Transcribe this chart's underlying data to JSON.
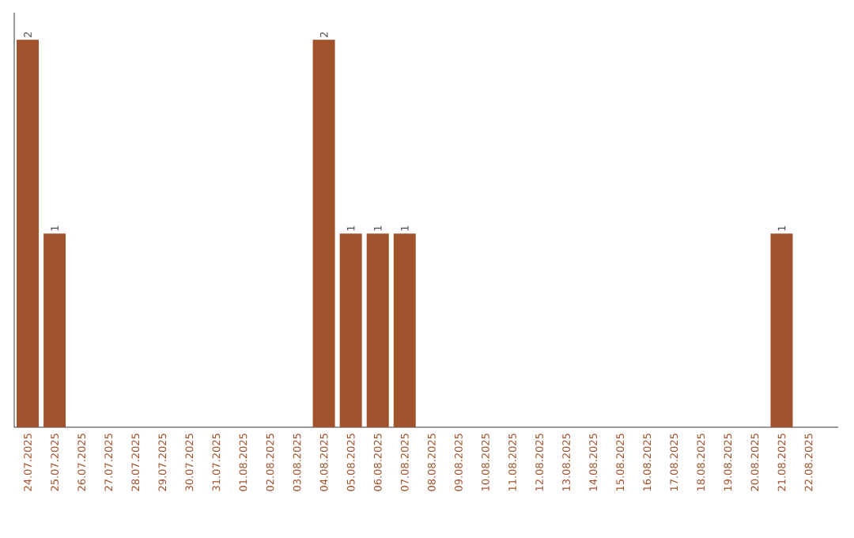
{
  "chart_data": {
    "type": "bar",
    "categories": [
      "24.07.2025",
      "25.07.2025",
      "26.07.2025",
      "27.07.2025",
      "28.07.2025",
      "29.07.2025",
      "30.07.2025",
      "31.07.2025",
      "01.08.2025",
      "02.08.2025",
      "03.08.2025",
      "04.08.2025",
      "05.08.2025",
      "06.08.2025",
      "07.08.2025",
      "08.08.2025",
      "09.08.2025",
      "10.08.2025",
      "11.08.2025",
      "12.08.2025",
      "13.08.2025",
      "14.08.2025",
      "15.08.2025",
      "16.08.2025",
      "17.08.2025",
      "18.08.2025",
      "19.08.2025",
      "20.08.2025",
      "21.08.2025",
      "22.08.2025"
    ],
    "values": [
      2,
      1,
      0,
      0,
      0,
      0,
      0,
      0,
      0,
      0,
      0,
      2,
      1,
      1,
      1,
      0,
      0,
      0,
      0,
      0,
      0,
      0,
      0,
      0,
      0,
      0,
      0,
      0,
      1,
      0
    ],
    "value_labels": [
      "2",
      "1",
      null,
      null,
      null,
      null,
      null,
      null,
      null,
      null,
      null,
      "2",
      "1",
      "1",
      "1",
      null,
      null,
      null,
      null,
      null,
      null,
      null,
      null,
      null,
      null,
      null,
      null,
      null,
      "1",
      null
    ],
    "color": "#a0522d"
  }
}
